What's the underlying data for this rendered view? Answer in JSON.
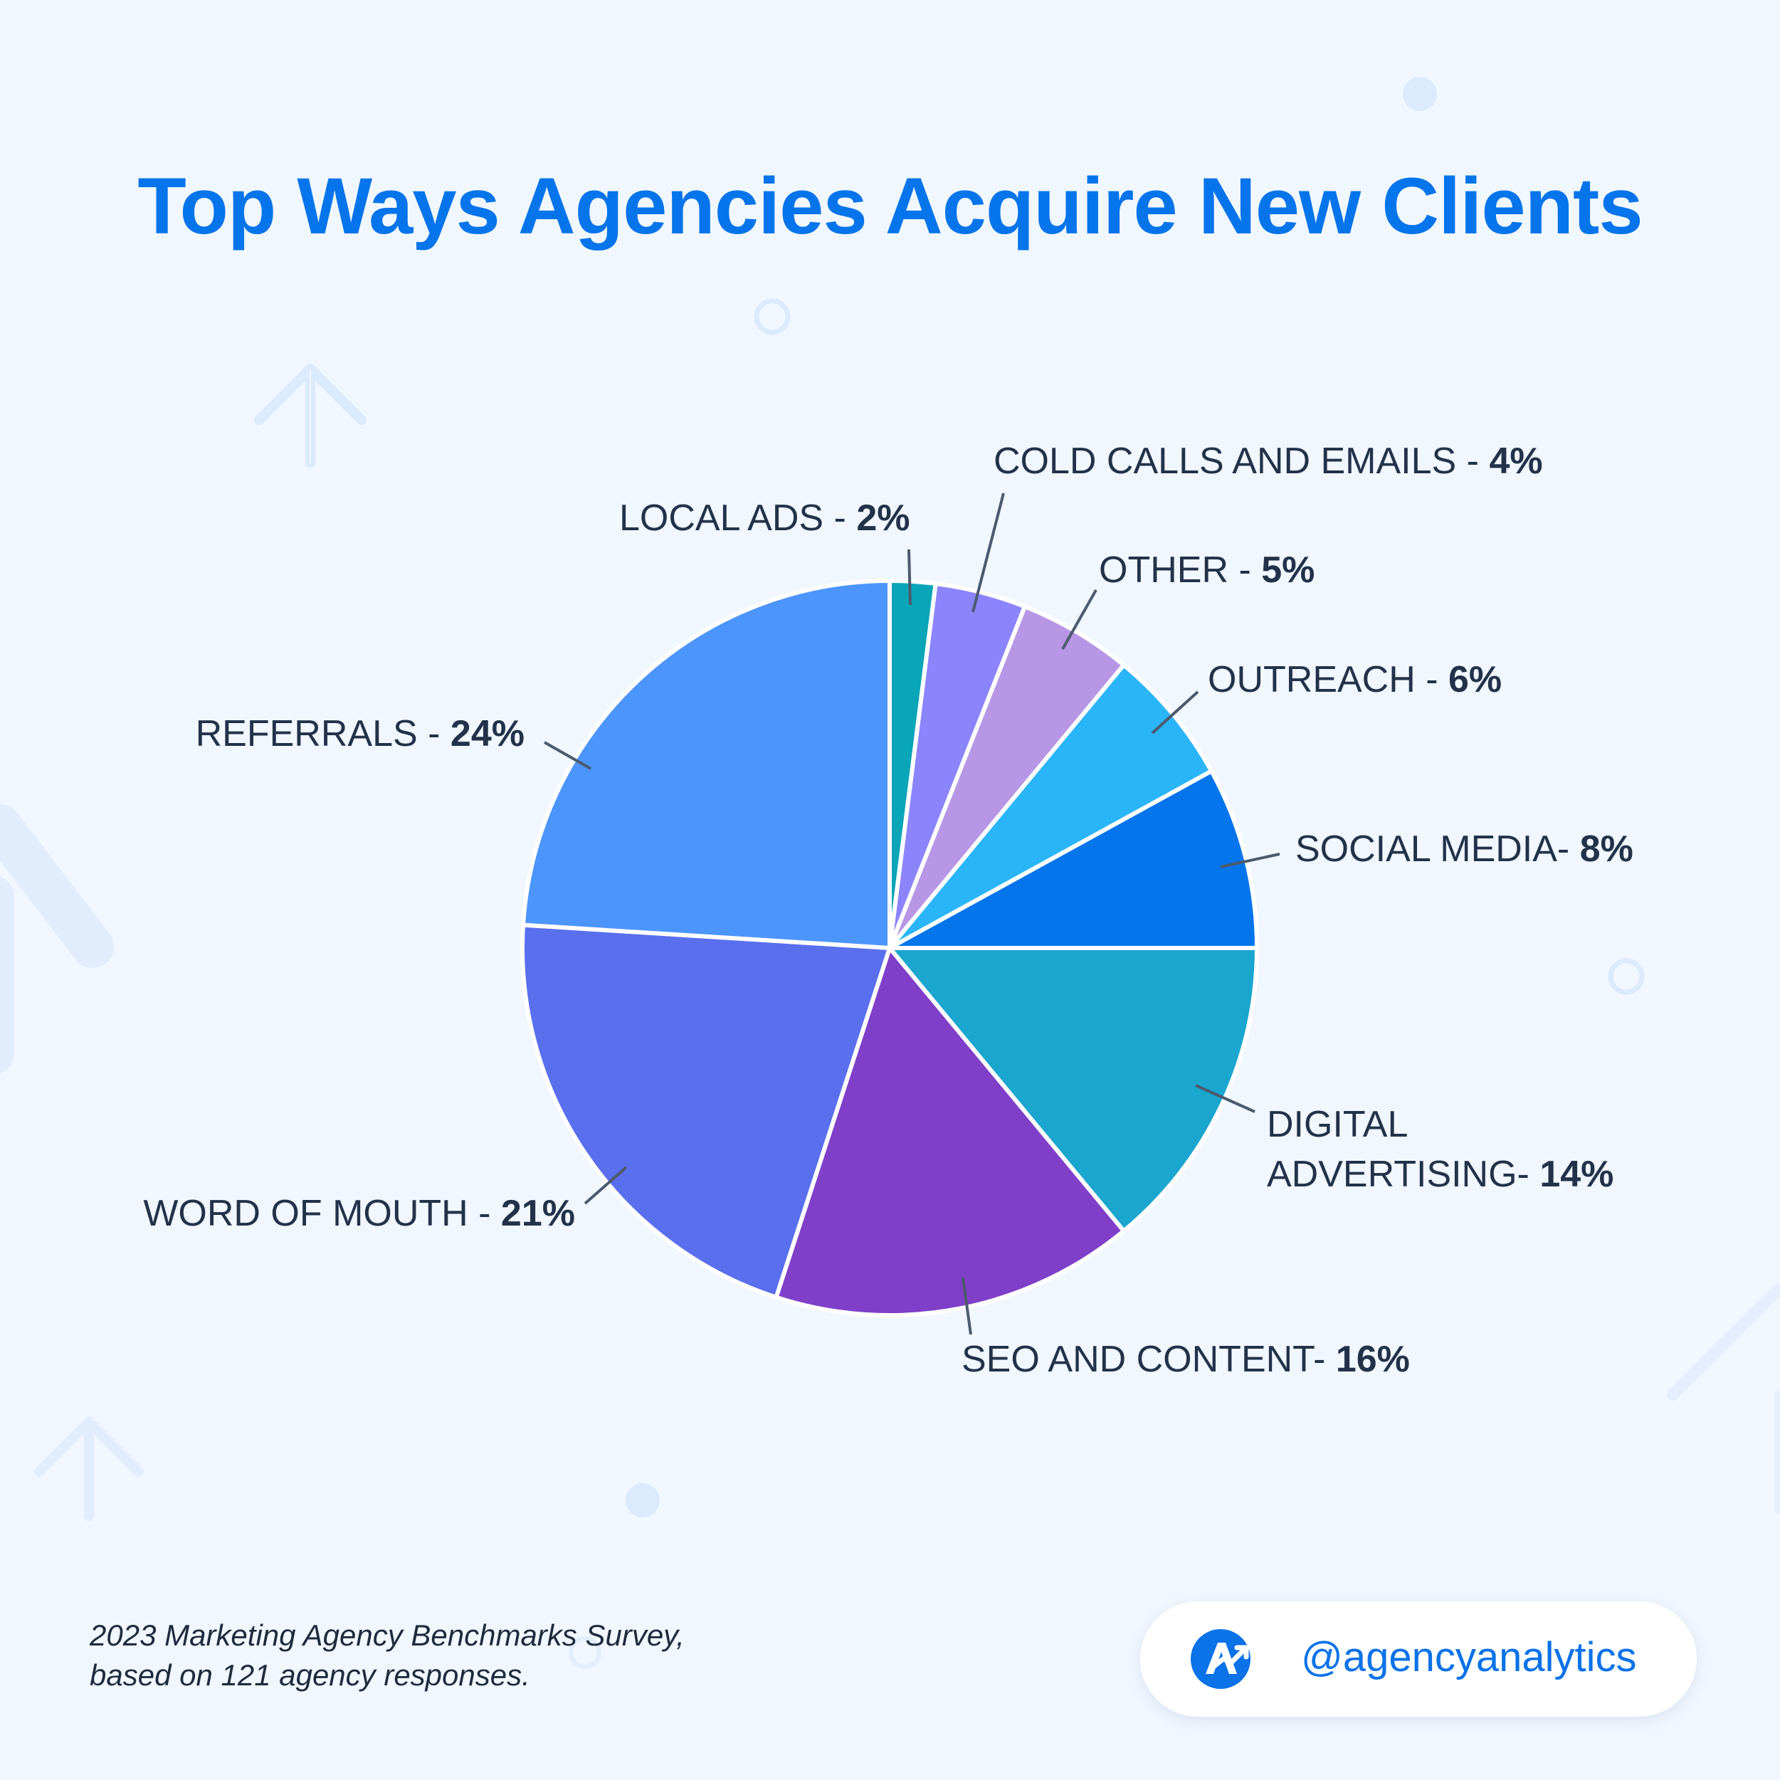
{
  "title": "Top Ways Agencies Acquire New Clients",
  "chart_data": {
    "type": "pie",
    "title": "Top Ways Agencies Acquire New Clients",
    "start_angle_deg": 0,
    "direction": "clockwise",
    "slices": [
      {
        "label": "LOCAL ADS - ",
        "pct_label": "2%",
        "value": 2,
        "color": "#0aa6b8"
      },
      {
        "label": "COLD CALLS AND EMAILS - ",
        "pct_label": "4%",
        "value": 4,
        "color": "#8c84fd"
      },
      {
        "label": "OTHER - ",
        "pct_label": "5%",
        "value": 5,
        "color": "#b796e6"
      },
      {
        "label": "OUTREACH - ",
        "pct_label": "6%",
        "value": 6,
        "color": "#2ab5f8"
      },
      {
        "label": "SOCIAL MEDIA- ",
        "pct_label": "8%",
        "value": 8,
        "color": "#0575eb"
      },
      {
        "label": "DIGITAL",
        "label_line2": "ADVERTISING- ",
        "pct_label": "14%",
        "value": 14,
        "color": "#1aa6cf"
      },
      {
        "label": "SEO AND CONTENT- ",
        "pct_label": "16%",
        "value": 16,
        "color": "#7f3fc9"
      },
      {
        "label": "WORD OF MOUTH - ",
        "pct_label": "21%",
        "value": 21,
        "color": "#596fed"
      },
      {
        "label": "REFERRALS - ",
        "pct_label": "24%",
        "value": 24,
        "color": "#4c95fd"
      }
    ]
  },
  "footnote": {
    "line1": "2023 Marketing Agency Benchmarks Survey,",
    "line2": "based on 121 agency responses."
  },
  "brand": {
    "handle": "@agencyanalytics",
    "logo_icon": "agencyanalytics-logo-icon"
  },
  "colors": {
    "background": "#f1f7fe",
    "title": "#0674ea",
    "label_text": "#23324a",
    "leader_line": "#4c5a6e",
    "decoration": "#dbeafc"
  }
}
